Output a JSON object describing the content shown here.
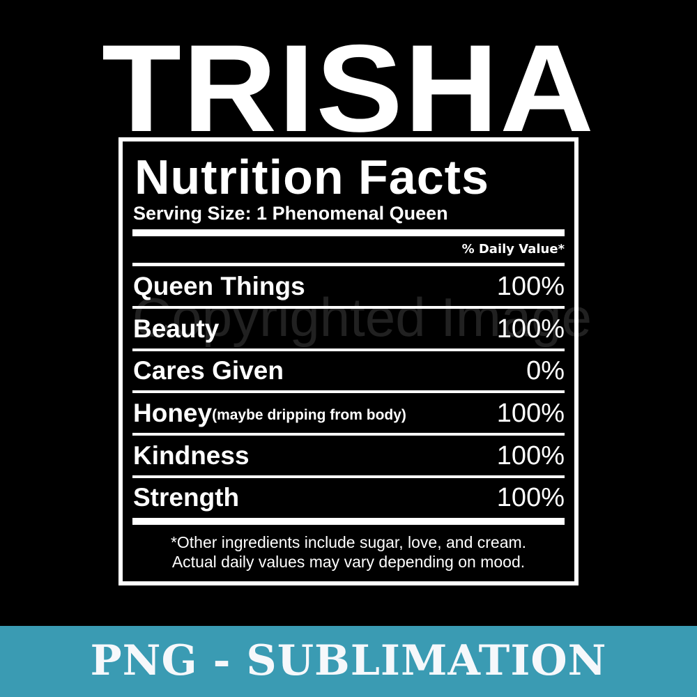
{
  "header": {
    "name": "TRISHA"
  },
  "label": {
    "title": "Nutrition Facts",
    "serving_size": "Serving Size: 1 Phenomenal Queen",
    "daily_value_header": "% Daily Value*",
    "rows": [
      {
        "name": "Queen Things",
        "note": "",
        "value": "100%"
      },
      {
        "name": "Beauty",
        "note": "",
        "value": "100%"
      },
      {
        "name": "Cares Given",
        "note": "",
        "value": "0%"
      },
      {
        "name": "Honey",
        "note": "(maybe dripping from body)",
        "value": "100%"
      },
      {
        "name": "Kindness",
        "note": "",
        "value": "100%"
      },
      {
        "name": "Strength",
        "note": "",
        "value": "100%"
      }
    ],
    "footnote_1": "*Other ingredients include sugar, love, and cream.",
    "footnote_2": "Actual daily values may vary depending on mood."
  },
  "watermark": "Copyrighted Image",
  "banner": {
    "text": "PNG - SUBLIMATION",
    "color": "#3a9bb3"
  }
}
